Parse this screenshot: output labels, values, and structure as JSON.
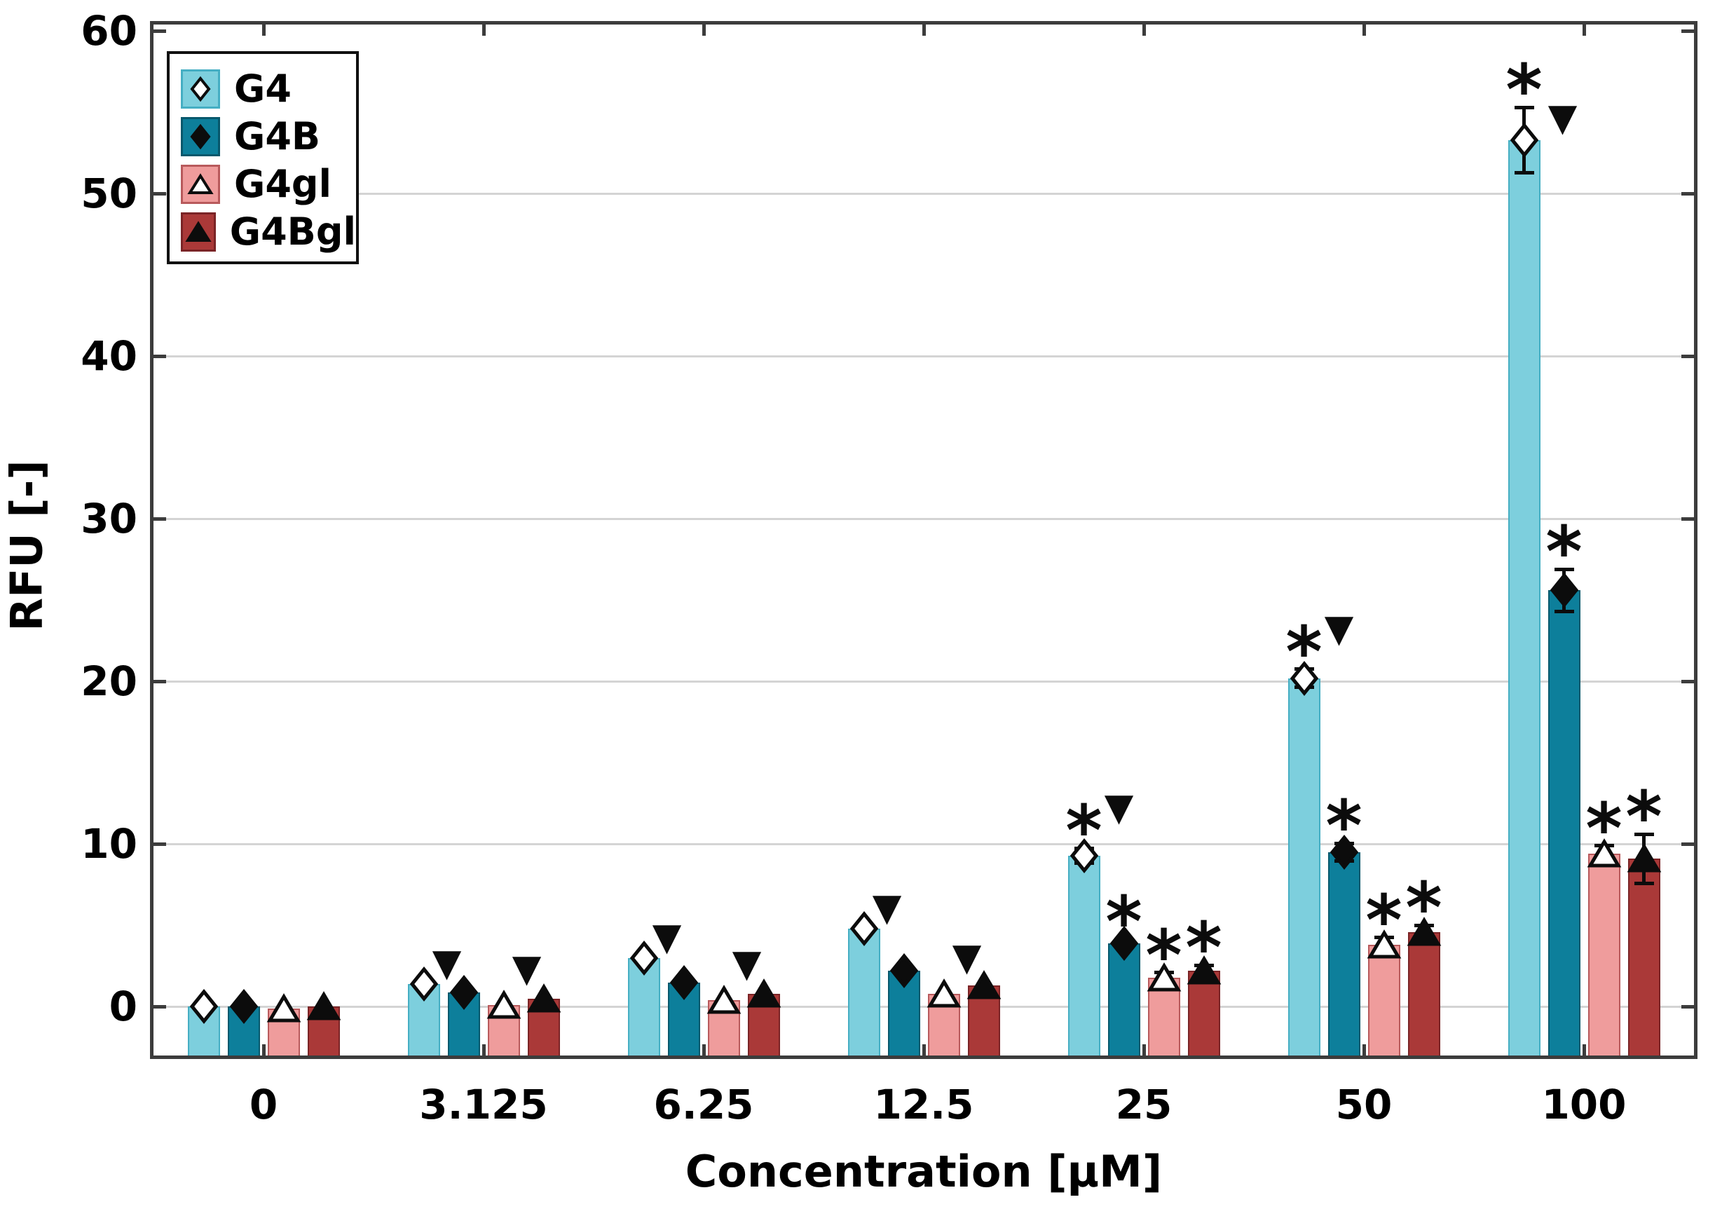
{
  "figure": {
    "xlabel": "Concentration [µM]",
    "ylabel": "RFU [-]"
  },
  "symbols": {
    "asterisk": "*",
    "triangle_down": "▼"
  },
  "colors": {
    "frame": "#3c3c3c",
    "gridline": "#d4d4d4",
    "annotation": "#0c0c0c",
    "background": "#ffffff"
  },
  "chart_data": {
    "type": "bar",
    "title": "",
    "xlabel": "Concentration [µM]",
    "ylabel": "RFU [-]",
    "categories": [
      "0",
      "3.125",
      "6.25",
      "12.5",
      "25",
      "50",
      "100"
    ],
    "y_ticks": [
      0,
      10,
      20,
      30,
      40,
      50,
      60
    ],
    "ylim": [
      -3.0,
      60.4
    ],
    "grid": "horizontal",
    "legend_position": "top-left-inside",
    "series": [
      {
        "name": "G4",
        "marker": "open-diamond",
        "fill": "#7dcfdd",
        "edge": "#45aec3",
        "values": [
          0.0,
          1.4,
          3.0,
          4.8,
          9.3,
          20.2,
          53.3
        ],
        "errors": [
          0,
          0,
          0,
          0,
          0.45,
          0.55,
          2.0
        ],
        "sig_asterisk": [
          false,
          false,
          false,
          false,
          true,
          true,
          true
        ],
        "sig_triangle": [
          false,
          true,
          true,
          true,
          true,
          true,
          true
        ]
      },
      {
        "name": "G4B",
        "marker": "filled-diamond",
        "fill": "#0d7f9b",
        "edge": "#07586c",
        "values": [
          0.0,
          0.9,
          1.5,
          2.2,
          3.9,
          9.5,
          25.6
        ],
        "errors": [
          0,
          0,
          0,
          0,
          0.25,
          0.55,
          1.3
        ],
        "sig_asterisk": [
          false,
          false,
          false,
          false,
          true,
          true,
          true
        ],
        "sig_triangle": [
          false,
          false,
          false,
          false,
          false,
          false,
          false
        ]
      },
      {
        "name": "G4gl",
        "marker": "open-triangle",
        "fill": "#ef9c9c",
        "edge": "#b85a5c",
        "values": [
          -0.1,
          0.1,
          0.4,
          0.8,
          1.8,
          3.8,
          9.4
        ],
        "errors": [
          0,
          0,
          0,
          0,
          0.3,
          0.45,
          0.5
        ],
        "sig_asterisk": [
          false,
          false,
          false,
          false,
          true,
          true,
          true
        ],
        "sig_triangle": [
          false,
          true,
          true,
          true,
          false,
          false,
          false
        ]
      },
      {
        "name": "G4Bgl",
        "marker": "filled-triangle",
        "fill": "#aa3938",
        "edge": "#7a2426",
        "values": [
          0.0,
          0.5,
          0.8,
          1.3,
          2.2,
          4.6,
          9.1
        ],
        "errors": [
          0,
          0,
          0,
          0,
          0.35,
          0.4,
          1.5
        ],
        "sig_asterisk": [
          false,
          false,
          false,
          false,
          true,
          true,
          true
        ],
        "sig_triangle": [
          false,
          false,
          false,
          false,
          false,
          false,
          false
        ]
      }
    ]
  }
}
